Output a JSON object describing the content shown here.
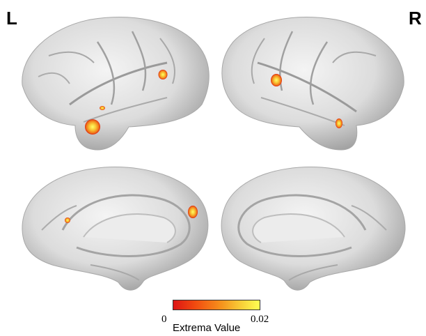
{
  "labels": {
    "left": "L",
    "right": "R"
  },
  "colorbar": {
    "min": "0",
    "max": "0.02",
    "title": "Extrema Value",
    "colors": [
      "#dd1414",
      "#f04a10",
      "#f6911c",
      "#f8d23a",
      "#ffff52"
    ]
  },
  "views": [
    "left-lateral",
    "right-lateral",
    "left-medial",
    "right-medial"
  ],
  "surface_color": "#d9d9d9"
}
